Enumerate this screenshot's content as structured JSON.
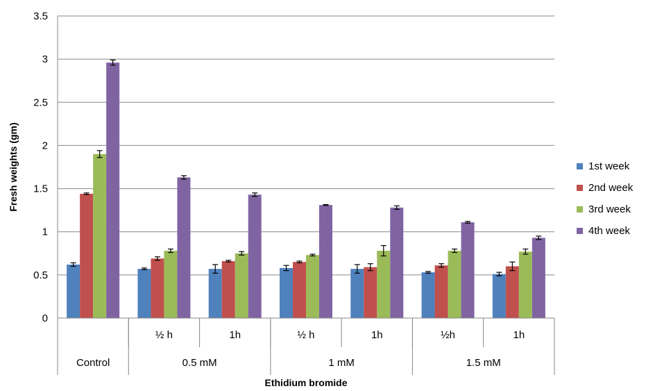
{
  "chart_data": {
    "type": "bar",
    "title": "",
    "xlabel": "Ethidium bromide",
    "ylabel": "Fresh weights (gm)",
    "ylim": [
      0,
      3.5
    ],
    "yticks": [
      "0",
      "0.5",
      "1",
      "1.5",
      "2",
      "2.5",
      "3",
      "3.5"
    ],
    "grid": true,
    "legend_position": "right",
    "categories": [
      {
        "sub": "",
        "group": "Control"
      },
      {
        "sub": "½ h",
        "group": "0.5 mM"
      },
      {
        "sub": "1h",
        "group": "0.5 mM"
      },
      {
        "sub": "½ h",
        "group": "1 mM"
      },
      {
        "sub": "1h",
        "group": "1 mM"
      },
      {
        "sub": "½h",
        "group": "1.5 mM"
      },
      {
        "sub": "1h",
        "group": "1.5 mM"
      }
    ],
    "groups": [
      {
        "label": "Control",
        "span": 1
      },
      {
        "label": "0.5 mM",
        "span": 2
      },
      {
        "label": "1 mM",
        "span": 2
      },
      {
        "label": "1.5 mM",
        "span": 2
      }
    ],
    "series": [
      {
        "name": "1st week",
        "color": "#4F81BD",
        "values": [
          0.62,
          0.57,
          0.57,
          0.58,
          0.57,
          0.53,
          0.51
        ],
        "errors": [
          0.02,
          0.01,
          0.05,
          0.03,
          0.05,
          0.01,
          0.02
        ]
      },
      {
        "name": "2nd week",
        "color": "#C0504D",
        "values": [
          1.44,
          0.69,
          0.66,
          0.65,
          0.59,
          0.61,
          0.6
        ],
        "errors": [
          0.01,
          0.02,
          0.01,
          0.01,
          0.04,
          0.02,
          0.05
        ]
      },
      {
        "name": "3rd week",
        "color": "#9BBB59",
        "values": [
          1.9,
          0.78,
          0.75,
          0.73,
          0.78,
          0.78,
          0.77
        ],
        "errors": [
          0.04,
          0.02,
          0.02,
          0.01,
          0.06,
          0.02,
          0.03
        ]
      },
      {
        "name": "4th week",
        "color": "#8064A2",
        "values": [
          2.96,
          1.63,
          1.43,
          1.31,
          1.28,
          1.11,
          0.93
        ],
        "errors": [
          0.03,
          0.02,
          0.02,
          0.005,
          0.02,
          0.01,
          0.02
        ]
      }
    ]
  }
}
